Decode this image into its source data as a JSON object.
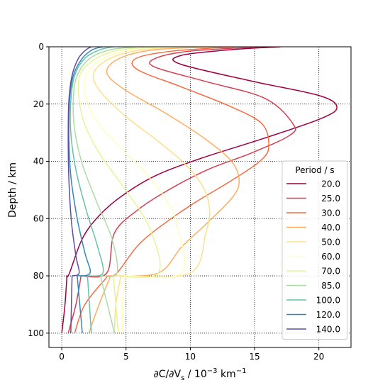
{
  "chart_data": {
    "type": "line",
    "xlabel": "∂C/∂V",
    "xlabel_sub": "s",
    "xlabel_tail": " / 10",
    "xlabel_exp1": "−3",
    "xlabel_unit": " km",
    "xlabel_exp2": "−1",
    "ylabel": "Depth / km",
    "xlim": [
      -1,
      22.5
    ],
    "ylim": [
      105,
      0
    ],
    "y_inverted": true,
    "grid": true,
    "grid_style": "dotted",
    "xticks": [
      0,
      5,
      10,
      15,
      20
    ],
    "xtick_labels": [
      "0",
      "5",
      "10",
      "15",
      "20"
    ],
    "yticks": [
      0,
      20,
      40,
      60,
      80,
      100
    ],
    "ytick_labels": [
      "0",
      "20",
      "40",
      "60",
      "80",
      "100"
    ],
    "legend": {
      "title": "Period / s",
      "placement": "lower right"
    },
    "series": [
      {
        "name": "20.0",
        "color": "#9e0142",
        "x": [
          17.0,
          13.2,
          9.3,
          9.2,
          14.8,
          20.0,
          21.4,
          20.2,
          15.7,
          10.8,
          7.3,
          4.7,
          2.9,
          1.6,
          0.6,
          0.4,
          0.25,
          0.0
        ],
        "y": [
          0,
          1,
          3,
          6,
          12,
          17,
          21,
          25,
          32,
          39,
          45,
          52,
          59,
          67,
          79,
          80,
          90,
          100
        ]
      },
      {
        "name": "25.0",
        "color": "#d53e4f",
        "x": [
          15.5,
          10.0,
          7.3,
          7.2,
          11.1,
          15.8,
          18.0,
          17.7,
          14.8,
          11.3,
          8.3,
          5.9,
          4.1,
          3.5,
          1.5,
          1.1,
          0.5
        ],
        "y": [
          0,
          1.5,
          4,
          7,
          12,
          18,
          27,
          31,
          37,
          43,
          50,
          57,
          65,
          79,
          80,
          90,
          100
        ]
      },
      {
        "name": "30.0",
        "color": "#f46d43",
        "x": [
          13.5,
          8.6,
          5.8,
          5.9,
          9.3,
          13.2,
          15.6,
          16.1,
          15.4,
          13.1,
          10.5,
          8.2,
          6.0,
          4.3,
          3.6,
          1.8,
          1.0
        ],
        "y": [
          0,
          1.5,
          4,
          8,
          14,
          21,
          27,
          35,
          40,
          47,
          54,
          61,
          69,
          79,
          80,
          90,
          100
        ]
      },
      {
        "name": "40.0",
        "color": "#fdae61",
        "x": [
          12.0,
          7.3,
          4.5,
          3.5,
          4.9,
          8.0,
          11.1,
          13.2,
          13.8,
          13.2,
          11.2,
          9.3,
          7.5,
          3.8,
          2.9,
          2.1
        ],
        "y": [
          0,
          1,
          4,
          9,
          15,
          23,
          32,
          40,
          47,
          53,
          62,
          70,
          79,
          80,
          90,
          100
        ]
      },
      {
        "name": "50.0",
        "color": "#fee08b",
        "x": [
          10.5,
          6.3,
          3.8,
          2.5,
          2.9,
          4.9,
          7.5,
          9.6,
          11.0,
          11.5,
          11.2,
          10.0,
          4.6,
          4.2,
          4.1
        ],
        "y": [
          0,
          1,
          4,
          9,
          15,
          24,
          33,
          41,
          49,
          57,
          65,
          79,
          80,
          90,
          100
        ]
      },
      {
        "name": "60.0",
        "color": "#ffffbf",
        "x": [
          9.0,
          5.5,
          3.2,
          2.0,
          1.8,
          2.6,
          4.3,
          6.5,
          8.2,
          9.0,
          9.3,
          4.9,
          4.7,
          4.7
        ],
        "y": [
          0,
          1,
          4,
          9,
          16,
          25,
          34,
          44,
          54,
          63,
          79,
          80,
          90,
          100
        ]
      },
      {
        "name": "70.0",
        "color": "#e6f598",
        "x": [
          7.5,
          4.6,
          2.7,
          1.5,
          1.3,
          1.7,
          2.9,
          4.8,
          6.8,
          7.5,
          4.0,
          4.2,
          4.4
        ],
        "y": [
          0,
          1,
          4,
          9,
          16,
          26,
          37,
          49,
          63,
          79,
          80,
          90,
          100
        ]
      },
      {
        "name": "85.0",
        "color": "#abdda4",
        "x": [
          5.8,
          3.8,
          2.2,
          1.2,
          0.9,
          1.0,
          1.6,
          2.7,
          3.9,
          4.3,
          3.0,
          4.1
        ],
        "y": [
          0,
          1,
          4,
          10,
          18,
          29,
          41,
          54,
          67,
          79,
          80,
          100
        ]
      },
      {
        "name": "100.0",
        "color": "#66c2a5",
        "x": [
          4.0,
          3.0,
          1.8,
          1.0,
          0.7,
          0.7,
          1.1,
          1.9,
          2.8,
          3.2,
          2.0,
          2.3
        ],
        "y": [
          0,
          1,
          4,
          10,
          19,
          30,
          43,
          57,
          70,
          79,
          80,
          100
        ]
      },
      {
        "name": "120.0",
        "color": "#3288bd",
        "x": [
          3.2,
          2.4,
          1.6,
          0.9,
          0.6,
          0.55,
          0.7,
          1.2,
          1.8,
          2.2,
          1.2,
          1.6
        ],
        "y": [
          0,
          1,
          4,
          10,
          19,
          31,
          45,
          60,
          72,
          79,
          80,
          100
        ]
      },
      {
        "name": "140.0",
        "color": "#5e4fa2",
        "x": [
          2.3,
          1.9,
          1.3,
          0.8,
          0.55,
          0.5,
          0.55,
          0.75,
          1.1,
          1.35,
          0.8,
          0.7
        ],
        "y": [
          0,
          1,
          4,
          10,
          19,
          31,
          46,
          61,
          73,
          79,
          80,
          100
        ]
      }
    ]
  }
}
